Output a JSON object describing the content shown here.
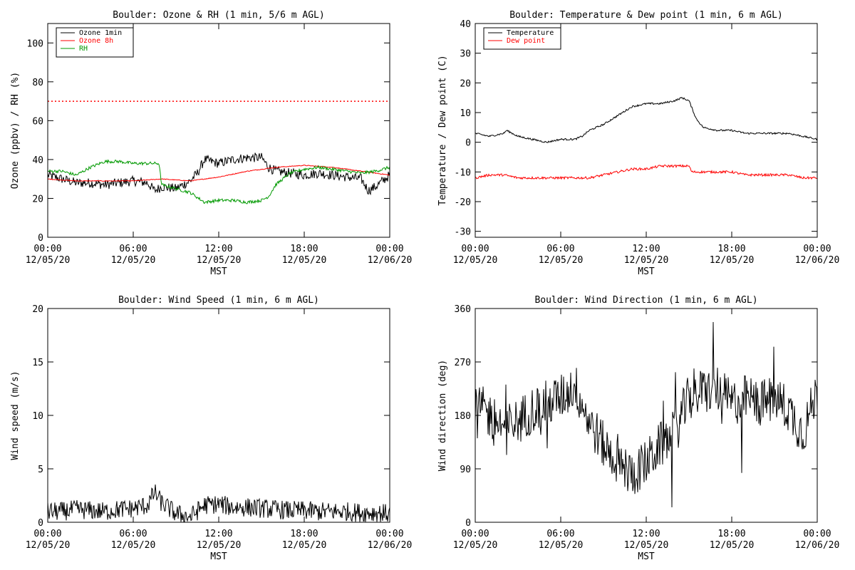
{
  "chart_data": [
    {
      "type": "line",
      "title": "Boulder: Ozone & RH (1 min, 5/6 m AGL)",
      "xlabel": "MST",
      "ylabel": "Ozone (ppbv) / RH (%)",
      "xlim": [
        0,
        24
      ],
      "ylim": [
        0,
        110
      ],
      "yticks": [
        0,
        20,
        40,
        60,
        80,
        100
      ],
      "xticks": [
        0,
        6,
        12,
        18,
        24
      ],
      "xtick_labels": [
        [
          "00:00",
          "12/05/20"
        ],
        [
          "06:00",
          "12/05/20"
        ],
        [
          "12:00",
          "12/05/20"
        ],
        [
          "18:00",
          "12/05/20"
        ],
        [
          "00:00",
          "12/06/20"
        ]
      ],
      "legend_position": "top-left",
      "reference_line": {
        "y": 70,
        "color": "#ff0000",
        "style": "dotted"
      },
      "series": [
        {
          "name": "Ozone 1min",
          "color": "#000000",
          "noise": 2.5,
          "x": [
            0,
            1,
            2,
            3,
            4,
            5,
            6,
            7,
            7.5,
            8,
            9,
            10,
            10.5,
            11,
            12,
            13,
            14,
            15,
            15.5,
            16,
            17,
            18,
            19,
            20,
            21,
            22,
            22.5,
            23,
            24
          ],
          "y": [
            32,
            30,
            28,
            28,
            27,
            28,
            29,
            28,
            24,
            26,
            25,
            29,
            33,
            40,
            38,
            40,
            41,
            41,
            36,
            34,
            33,
            32,
            33,
            32,
            31,
            30,
            24,
            26,
            32
          ]
        },
        {
          "name": "Ozone 8h",
          "color": "#ff0000",
          "noise": 0.2,
          "x": [
            0,
            2,
            4,
            6,
            8,
            10,
            12,
            14,
            16,
            18,
            20,
            22,
            24
          ],
          "y": [
            30,
            29,
            29,
            29,
            30,
            29,
            31,
            34,
            36,
            37,
            36,
            34,
            32
          ]
        },
        {
          "name": "RH",
          "color": "#009900",
          "noise": 0.8,
          "x": [
            0,
            1,
            2,
            3,
            4,
            5,
            6,
            7,
            7.8,
            8,
            9,
            10,
            11,
            12,
            13,
            14,
            15,
            15.5,
            16,
            17,
            18,
            19,
            20,
            21,
            22,
            23,
            24
          ],
          "y": [
            34,
            34,
            32,
            36,
            39,
            39,
            38,
            38,
            38,
            27,
            25,
            23,
            18,
            19,
            19,
            18,
            19,
            21,
            27,
            33,
            35,
            36,
            35,
            34,
            33,
            34,
            36
          ]
        }
      ]
    },
    {
      "type": "line",
      "title": "Boulder: Temperature & Dew point (1 min, 6 m AGL)",
      "xlabel": "MST",
      "ylabel": "Temperature / Dew point (C)",
      "xlim": [
        0,
        24
      ],
      "ylim": [
        -32,
        40
      ],
      "yticks": [
        -30,
        -20,
        -10,
        0,
        10,
        20,
        30,
        40
      ],
      "xticks": [
        0,
        6,
        12,
        18,
        24
      ],
      "xtick_labels": [
        [
          "00:00",
          "12/05/20"
        ],
        [
          "06:00",
          "12/05/20"
        ],
        [
          "12:00",
          "12/05/20"
        ],
        [
          "18:00",
          "12/05/20"
        ],
        [
          "00:00",
          "12/06/20"
        ]
      ],
      "legend_position": "top-left",
      "series": [
        {
          "name": "Temperature",
          "color": "#000000",
          "noise": 0.3,
          "x": [
            0,
            1,
            2,
            2.2,
            3,
            4,
            5,
            6,
            7,
            7.5,
            8,
            9,
            10,
            11,
            12,
            13,
            14,
            14.5,
            15,
            15.5,
            16,
            17,
            18,
            19,
            20,
            21,
            22,
            23,
            24
          ],
          "y": [
            3,
            2,
            3,
            4,
            2,
            1,
            0,
            1,
            1,
            2,
            4,
            6,
            9,
            12,
            13,
            13,
            14,
            15,
            14,
            8,
            5,
            4,
            4,
            3,
            3,
            3,
            3,
            2,
            1
          ]
        },
        {
          "name": "Dew point",
          "color": "#ff0000",
          "noise": 0.4,
          "x": [
            0,
            1,
            2,
            3,
            4,
            5,
            6,
            7,
            8,
            9,
            10,
            11,
            12,
            13,
            14,
            14.5,
            15,
            15.2,
            16,
            17,
            18,
            19,
            20,
            21,
            22,
            23,
            24
          ],
          "y": [
            -12,
            -11,
            -11,
            -12,
            -12,
            -12,
            -12,
            -12,
            -12,
            -11,
            -10,
            -9,
            -9,
            -8,
            -8,
            -8,
            -8,
            -10,
            -10,
            -10,
            -10,
            -11,
            -11,
            -11,
            -11,
            -12,
            -12
          ]
        }
      ]
    },
    {
      "type": "line",
      "title": "Boulder: Wind Speed (1 min, 6 m AGL)",
      "xlabel": "MST",
      "ylabel": "Wind speed (m/s)",
      "xlim": [
        0,
        24
      ],
      "ylim": [
        0,
        20
      ],
      "yticks": [
        0,
        5,
        10,
        15,
        20
      ],
      "xticks": [
        0,
        6,
        12,
        18,
        24
      ],
      "xtick_labels": [
        [
          "00:00",
          "12/05/20"
        ],
        [
          "06:00",
          "12/05/20"
        ],
        [
          "12:00",
          "12/05/20"
        ],
        [
          "18:00",
          "12/05/20"
        ],
        [
          "00:00",
          "12/06/20"
        ]
      ],
      "series": [
        {
          "color": "#000000",
          "noise": 0.9,
          "x": [
            0,
            1,
            2,
            3,
            4,
            5,
            6,
            7,
            7.5,
            8,
            9,
            10,
            11,
            12,
            13,
            14,
            15,
            16,
            17,
            18,
            19,
            20,
            21,
            22,
            23,
            24
          ],
          "y": [
            1,
            1,
            1.2,
            1.1,
            1,
            1.2,
            1.3,
            1.6,
            2.8,
            1.8,
            0.8,
            0.5,
            1.6,
            1.7,
            1.4,
            1.4,
            1.3,
            1.2,
            1.1,
            1.1,
            1,
            1,
            1,
            0.9,
            0.9,
            0.8
          ]
        }
      ]
    },
    {
      "type": "line",
      "title": "Boulder: Wind Direction (1 min, 6 m AGL)",
      "xlabel": "MST",
      "ylabel": "Wind direction (deg)",
      "xlim": [
        0,
        24
      ],
      "ylim": [
        0,
        360
      ],
      "yticks": [
        0,
        90,
        180,
        270,
        360
      ],
      "xticks": [
        0,
        6,
        12,
        18,
        24
      ],
      "xtick_labels": [
        [
          "00:00",
          "12/05/20"
        ],
        [
          "06:00",
          "12/05/20"
        ],
        [
          "12:00",
          "12/05/20"
        ],
        [
          "18:00",
          "12/05/20"
        ],
        [
          "00:00",
          "12/06/20"
        ]
      ],
      "series": [
        {
          "color": "#000000",
          "noise": 40,
          "x": [
            0,
            1,
            2,
            3,
            4,
            5,
            6,
            7,
            8,
            9,
            10,
            11,
            12,
            13,
            14,
            15,
            16,
            17,
            18,
            19,
            20,
            21,
            22,
            23,
            24
          ],
          "y": [
            200,
            180,
            160,
            170,
            190,
            200,
            210,
            230,
            170,
            130,
            100,
            80,
            100,
            130,
            150,
            210,
            220,
            225,
            200,
            210,
            200,
            210,
            190,
            150,
            220
          ]
        }
      ]
    }
  ]
}
